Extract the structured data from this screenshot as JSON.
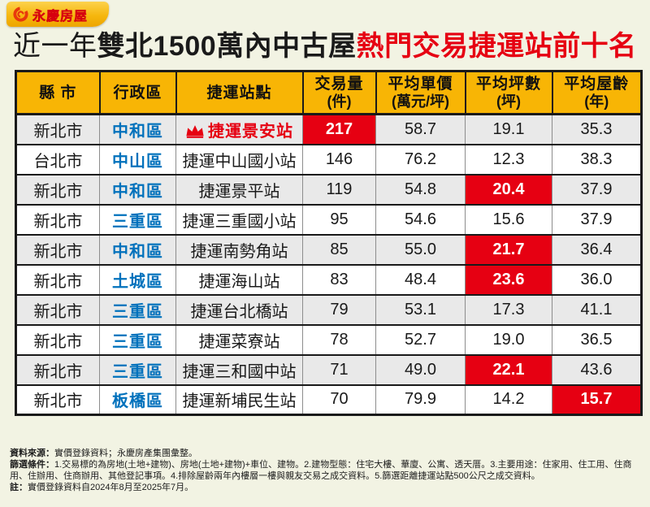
{
  "logo": {
    "brand": "永慶房屋"
  },
  "title": {
    "prefix": "近一年",
    "main": "雙北1500萬內中古屋",
    "highlight": "熱門交易捷運站前十名"
  },
  "colors": {
    "accent_red": "#e60012",
    "header_yellow": "#f8b505",
    "district_blue": "#0071bc",
    "row_alt_gray": "#e9e9e9",
    "page_background": "#f2f3e3"
  },
  "table": {
    "headers": [
      {
        "label": "縣 市",
        "sub": ""
      },
      {
        "label": "行政區",
        "sub": ""
      },
      {
        "label": "捷運站點",
        "sub": ""
      },
      {
        "label": "交易量",
        "sub": "(件)"
      },
      {
        "label": "平均單價",
        "sub": "(萬元/坪)"
      },
      {
        "label": "平均坪數",
        "sub": "(坪)"
      },
      {
        "label": "平均屋齡",
        "sub": "(年)"
      }
    ],
    "rows": [
      {
        "city": "新北市",
        "district": "中和區",
        "station": "捷運景安站",
        "crown": true,
        "volume": "217",
        "price": "58.7",
        "size": "19.1",
        "age": "35.3",
        "highlight": "volume"
      },
      {
        "city": "台北市",
        "district": "中山區",
        "station": "捷運中山國小站",
        "crown": false,
        "volume": "146",
        "price": "76.2",
        "size": "12.3",
        "age": "38.3",
        "highlight": ""
      },
      {
        "city": "新北市",
        "district": "中和區",
        "station": "捷運景平站",
        "crown": false,
        "volume": "119",
        "price": "54.8",
        "size": "20.4",
        "age": "37.9",
        "highlight": "size"
      },
      {
        "city": "新北市",
        "district": "三重區",
        "station": "捷運三重國小站",
        "crown": false,
        "volume": "95",
        "price": "54.6",
        "size": "15.6",
        "age": "37.9",
        "highlight": ""
      },
      {
        "city": "新北市",
        "district": "中和區",
        "station": "捷運南勢角站",
        "crown": false,
        "volume": "85",
        "price": "55.0",
        "size": "21.7",
        "age": "36.4",
        "highlight": "size"
      },
      {
        "city": "新北市",
        "district": "土城區",
        "station": "捷運海山站",
        "crown": false,
        "volume": "83",
        "price": "48.4",
        "size": "23.6",
        "age": "36.0",
        "highlight": "size"
      },
      {
        "city": "新北市",
        "district": "三重區",
        "station": "捷運台北橋站",
        "crown": false,
        "volume": "79",
        "price": "53.1",
        "size": "17.3",
        "age": "41.1",
        "highlight": ""
      },
      {
        "city": "新北市",
        "district": "三重區",
        "station": "捷運菜寮站",
        "crown": false,
        "volume": "78",
        "price": "52.7",
        "size": "19.0",
        "age": "36.5",
        "highlight": ""
      },
      {
        "city": "新北市",
        "district": "三重區",
        "station": "捷運三和國中站",
        "crown": false,
        "volume": "71",
        "price": "49.0",
        "size": "22.1",
        "age": "43.6",
        "highlight": "size"
      },
      {
        "city": "新北市",
        "district": "板橋區",
        "station": "捷運新埔民生站",
        "crown": false,
        "volume": "70",
        "price": "79.9",
        "size": "14.2",
        "age": "15.7",
        "highlight": "age"
      }
    ]
  },
  "chart_data": {
    "type": "table",
    "title": "近一年雙北1500萬內中古屋熱門交易捷運站前十名",
    "columns": [
      "縣市",
      "行政區",
      "捷運站點",
      "交易量(件)",
      "平均單價(萬元/坪)",
      "平均坪數(坪)",
      "平均屋齡(年)"
    ],
    "rows": [
      [
        "新北市",
        "中和區",
        "捷運景安站",
        217,
        58.7,
        19.1,
        35.3
      ],
      [
        "台北市",
        "中山區",
        "捷運中山國小站",
        146,
        76.2,
        12.3,
        38.3
      ],
      [
        "新北市",
        "中和區",
        "捷運景平站",
        119,
        54.8,
        20.4,
        37.9
      ],
      [
        "新北市",
        "三重區",
        "捷運三重國小站",
        95,
        54.6,
        15.6,
        37.9
      ],
      [
        "新北市",
        "中和區",
        "捷運南勢角站",
        85,
        55.0,
        21.7,
        36.4
      ],
      [
        "新北市",
        "土城區",
        "捷運海山站",
        83,
        48.4,
        23.6,
        36.0
      ],
      [
        "新北市",
        "三重區",
        "捷運台北橋站",
        79,
        53.1,
        17.3,
        41.1
      ],
      [
        "新北市",
        "三重區",
        "捷運菜寮站",
        78,
        52.7,
        19.0,
        36.5
      ],
      [
        "新北市",
        "三重區",
        "捷運三和國中站",
        71,
        49.0,
        22.1,
        43.6
      ],
      [
        "新北市",
        "板橋區",
        "捷運新埔民生站",
        70,
        79.9,
        14.2,
        15.7
      ]
    ],
    "highlighted_cells": [
      {
        "row": 1,
        "column": "交易量(件)",
        "value": 217
      },
      {
        "row": 3,
        "column": "平均坪數(坪)",
        "value": 20.4
      },
      {
        "row": 5,
        "column": "平均坪數(坪)",
        "value": 21.7
      },
      {
        "row": 6,
        "column": "平均坪數(坪)",
        "value": 23.6
      },
      {
        "row": 9,
        "column": "平均坪數(坪)",
        "value": 22.1
      },
      {
        "row": 10,
        "column": "平均屋齡(年)",
        "value": 15.7
      }
    ]
  },
  "footer": {
    "source_label": "資料來源：",
    "source_text": "實價登錄資料；永慶房產集團彙整。",
    "criteria_label": "篩選條件：",
    "criteria_text": "1.交易標的為房地(土地+建物)、房地(土地+建物)+車位、建物。2.建物型態：住宅大樓、華廈、公寓、透天厝。3.主要用途：住家用、住工用、住商用、住辦用、住商辦用、其他登記事項。4.排除屋齡兩年內樓層一樓與親友交易之成交資料。5.篩選距離捷運站點500公尺之成交資料。",
    "note_label": "註：",
    "note_text": "實價登錄資料自2024年8月至2025年7月。"
  }
}
